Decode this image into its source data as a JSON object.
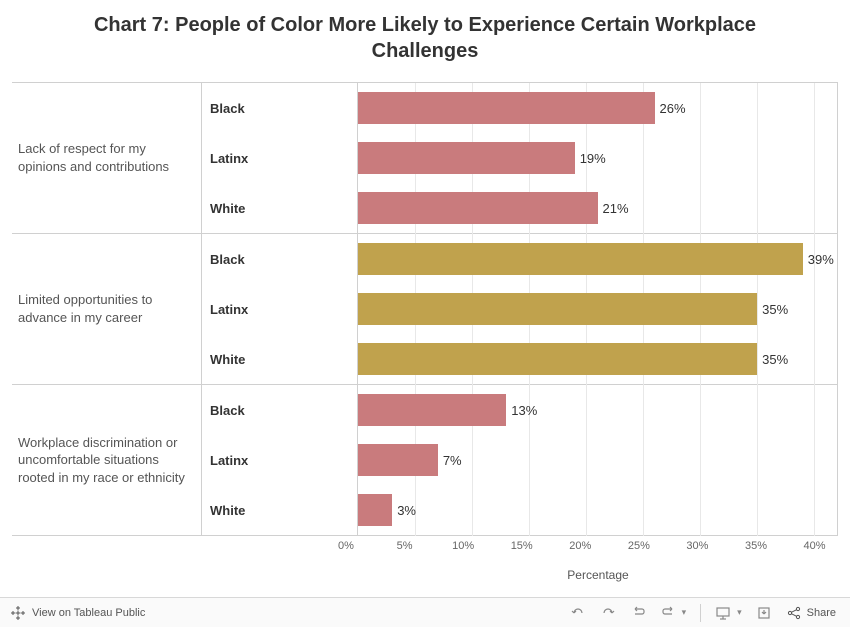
{
  "title": "Chart 7: People of Color More Likely to Experience Certain Workplace Challenges",
  "x_axis_label": "Percentage",
  "x_max": 42,
  "x_ticks": [
    0,
    5,
    10,
    15,
    20,
    25,
    30,
    35,
    40
  ],
  "x_tick_labels": [
    "0%",
    "5%",
    "10%",
    "15%",
    "20%",
    "25%",
    "30%",
    "35%",
    "40%"
  ],
  "colors": {
    "rose": "#c97b7d",
    "gold": "#c0a24d",
    "gridline": "#e8e8e8",
    "border": "#d0d0d0",
    "text": "#333333",
    "background": "#ffffff"
  },
  "groups": [
    {
      "label": "Lack of respect for my opinions and contributions",
      "color": "#c97b7d",
      "rows": [
        {
          "sub": "Black",
          "value": 26,
          "display": "26%"
        },
        {
          "sub": "Latinx",
          "value": 19,
          "display": "19%"
        },
        {
          "sub": "White",
          "value": 21,
          "display": "21%"
        }
      ]
    },
    {
      "label": "Limited opportunities to advance in my career",
      "color": "#c0a24d",
      "rows": [
        {
          "sub": "Black",
          "value": 39,
          "display": "39%"
        },
        {
          "sub": "Latinx",
          "value": 35,
          "display": "35%"
        },
        {
          "sub": "White",
          "value": 35,
          "display": "35%"
        }
      ]
    },
    {
      "label": "Workplace discrimination or uncomfortable situations rooted in my race or ethnicity",
      "color": "#c97b7d",
      "rows": [
        {
          "sub": "Black",
          "value": 13,
          "display": "13%"
        },
        {
          "sub": "Latinx",
          "value": 7,
          "display": "7%"
        },
        {
          "sub": "White",
          "value": 3,
          "display": "3%"
        }
      ]
    }
  ],
  "toolbar": {
    "view_label": "View on Tableau Public",
    "share_label": "Share"
  }
}
